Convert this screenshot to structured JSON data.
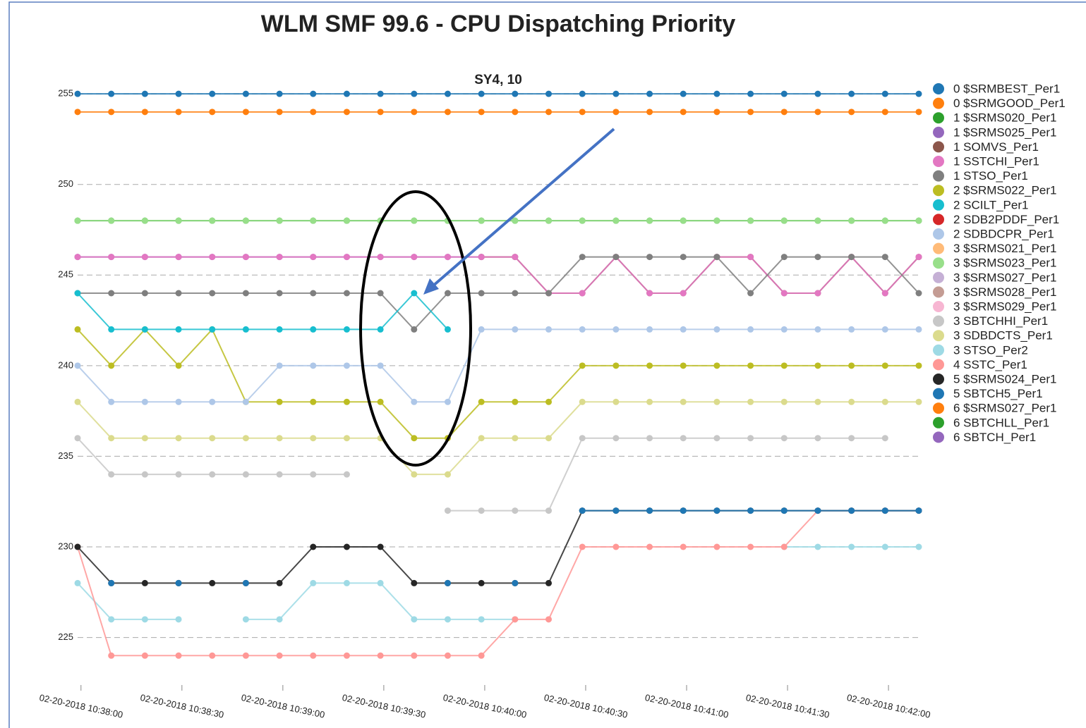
{
  "chart_data": {
    "type": "line",
    "title": "WLM SMF 99.6 - CPU Dispatching Priority",
    "subtitle": "SY4, 10",
    "x": [
      "02-20-2018 10:37:59",
      "02-20-2018 10:38:09",
      "02-20-2018 10:38:19",
      "02-20-2018 10:38:29",
      "02-20-2018 10:38:39",
      "02-20-2018 10:38:49",
      "02-20-2018 10:38:59",
      "02-20-2018 10:39:09",
      "02-20-2018 10:39:19",
      "02-20-2018 10:39:29",
      "02-20-2018 10:39:39",
      "02-20-2018 10:39:49",
      "02-20-2018 10:39:59",
      "02-20-2018 10:40:09",
      "02-20-2018 10:40:19",
      "02-20-2018 10:40:29",
      "02-20-2018 10:40:39",
      "02-20-2018 10:40:49",
      "02-20-2018 10:40:59",
      "02-20-2018 10:41:09",
      "02-20-2018 10:41:19",
      "02-20-2018 10:41:29",
      "02-20-2018 10:41:39",
      "02-20-2018 10:41:49",
      "02-20-2018 10:41:59",
      "02-20-2018 10:42:09"
    ],
    "xlim": [
      "02-20-2018 10:37:59",
      "02-20-2018 10:42:09"
    ],
    "xticks": [
      "02-20-2018 10:38:00",
      "02-20-2018 10:38:30",
      "02-20-2018 10:39:00",
      "02-20-2018 10:39:30",
      "02-20-2018 10:40:00",
      "02-20-2018 10:40:30",
      "02-20-2018 10:41:00",
      "02-20-2018 10:41:30",
      "02-20-2018 10:42:00"
    ],
    "ylim": [
      223,
      255.2
    ],
    "yticks": [
      225,
      230,
      235,
      240,
      245,
      250,
      255
    ],
    "grid": true,
    "legend": "right",
    "series": [
      {
        "name": "0 $SRMBEST_Per1",
        "color": "#1f77b4",
        "values": [
          255,
          255,
          255,
          255,
          255,
          255,
          255,
          255,
          255,
          255,
          255,
          255,
          255,
          255,
          255,
          255,
          255,
          255,
          255,
          255,
          255,
          255,
          255,
          255,
          255,
          255
        ]
      },
      {
        "name": "0 $SRMGOOD_Per1",
        "color": "#ff7f0e",
        "values": [
          254,
          254,
          254,
          254,
          254,
          254,
          254,
          254,
          254,
          254,
          254,
          254,
          254,
          254,
          254,
          254,
          254,
          254,
          254,
          254,
          254,
          254,
          254,
          254,
          254,
          254
        ]
      },
      {
        "name": "1 $SRMS020_Per1",
        "color": "#2ca02c",
        "values": [
          248,
          248,
          248,
          248,
          248,
          248,
          248,
          248,
          248,
          248,
          248,
          248,
          248,
          248,
          248,
          248,
          248,
          248,
          248,
          248,
          248,
          248,
          248,
          248,
          248,
          248
        ]
      },
      {
        "name": "1 $SRMS025_Per1",
        "color": "#9467bd",
        "values": [
          246,
          246,
          246,
          246,
          246,
          246,
          246,
          246,
          246,
          246,
          246,
          246,
          246,
          null,
          null,
          null,
          null,
          null,
          null,
          null,
          null,
          null,
          null,
          null,
          null,
          null
        ]
      },
      {
        "name": "1 SOMVS_Per1",
        "color": "#8c564b",
        "values": [
          null,
          null,
          null,
          null,
          null,
          null,
          null,
          null,
          null,
          null,
          null,
          null,
          246,
          246,
          244,
          244,
          246,
          244,
          244,
          246,
          246,
          244,
          244,
          246,
          244,
          246
        ]
      },
      {
        "name": "1 SSTCHI_Per1",
        "color": "#e377c2",
        "values": [
          246,
          246,
          246,
          246,
          246,
          246,
          246,
          246,
          246,
          246,
          246,
          246,
          246,
          246,
          244,
          244,
          246,
          244,
          244,
          246,
          246,
          244,
          244,
          246,
          244,
          246
        ]
      },
      {
        "name": "1 STSO_Per1",
        "color": "#7f7f7f",
        "values": [
          244,
          244,
          244,
          244,
          244,
          244,
          244,
          244,
          244,
          244,
          242,
          244,
          244,
          244,
          244,
          246,
          246,
          246,
          246,
          246,
          244,
          246,
          246,
          246,
          246,
          244
        ]
      },
      {
        "name": "2 $SRMS022_Per1",
        "color": "#bcbd22",
        "values": [
          242,
          240,
          242,
          240,
          242,
          238,
          238,
          238,
          238,
          238,
          236,
          236,
          238,
          238,
          238,
          240,
          240,
          240,
          240,
          240,
          240,
          240,
          240,
          240,
          240,
          240
        ]
      },
      {
        "name": "2 SCILT_Per1",
        "color": "#17becf",
        "values": [
          244,
          242,
          242,
          242,
          242,
          242,
          242,
          242,
          242,
          242,
          244,
          242,
          null,
          null,
          null,
          null,
          null,
          null,
          null,
          null,
          null,
          null,
          null,
          null,
          null,
          null
        ]
      },
      {
        "name": "2 SDB2PDDF_Per1",
        "color": "#d62728",
        "values": [
          null,
          null,
          null,
          null,
          null,
          null,
          null,
          null,
          null,
          null,
          null,
          null,
          null,
          null,
          null,
          null,
          null,
          null,
          null,
          null,
          null,
          null,
          null,
          null,
          null,
          null
        ]
      },
      {
        "name": "2 SDBDCPR_Per1",
        "color": "#aec7e8",
        "values": [
          240,
          238,
          238,
          238,
          238,
          238,
          240,
          240,
          240,
          240,
          238,
          238,
          242,
          242,
          242,
          242,
          242,
          242,
          242,
          242,
          242,
          242,
          242,
          242,
          242,
          242
        ]
      },
      {
        "name": "3 $SRMS021_Per1",
        "color": "#ffbb78",
        "values": [
          null,
          null,
          null,
          null,
          null,
          null,
          null,
          null,
          null,
          null,
          null,
          null,
          null,
          null,
          null,
          null,
          null,
          null,
          null,
          null,
          null,
          null,
          null,
          null,
          null,
          null
        ]
      },
      {
        "name": "3 $SRMS023_Per1",
        "color": "#98df8a",
        "values": [
          248,
          248,
          248,
          248,
          248,
          248,
          248,
          248,
          248,
          248,
          248,
          248,
          248,
          248,
          248,
          248,
          248,
          248,
          248,
          248,
          248,
          248,
          248,
          248,
          248,
          248
        ]
      },
      {
        "name": "3 $SRMS027_Per1",
        "color": "#c5b0d5",
        "values": [
          null,
          null,
          null,
          null,
          null,
          null,
          null,
          null,
          null,
          null,
          null,
          null,
          null,
          null,
          null,
          null,
          null,
          null,
          null,
          null,
          null,
          null,
          null,
          null,
          null,
          null
        ]
      },
      {
        "name": "3 $SRMS028_Per1",
        "color": "#c49c94",
        "values": [
          null,
          null,
          null,
          null,
          null,
          null,
          null,
          null,
          null,
          null,
          null,
          null,
          null,
          null,
          null,
          null,
          null,
          null,
          null,
          null,
          null,
          null,
          null,
          null,
          null,
          null
        ]
      },
      {
        "name": "3 $SRMS029_Per1",
        "color": "#f7b6d2",
        "values": [
          null,
          null,
          null,
          null,
          null,
          null,
          null,
          null,
          null,
          null,
          null,
          null,
          null,
          null,
          null,
          null,
          null,
          null,
          null,
          null,
          null,
          null,
          null,
          null,
          null,
          null
        ]
      },
      {
        "name": "3 SBTCHHI_Per1",
        "color": "#c7c7c7",
        "values": [
          236,
          234,
          234,
          234,
          234,
          234,
          234,
          234,
          234,
          null,
          null,
          232,
          232,
          232,
          232,
          236,
          236,
          236,
          236,
          236,
          236,
          236,
          236,
          236,
          236,
          null
        ]
      },
      {
        "name": "3 SDBDCTS_Per1",
        "color": "#dbdb8d",
        "values": [
          238,
          236,
          236,
          236,
          236,
          236,
          236,
          236,
          236,
          236,
          234,
          234,
          236,
          236,
          236,
          238,
          238,
          238,
          238,
          238,
          238,
          238,
          238,
          238,
          238,
          238
        ]
      },
      {
        "name": "3 STSO_Per2",
        "color": "#9edae5",
        "values": [
          228,
          226,
          226,
          226,
          null,
          226,
          226,
          228,
          228,
          228,
          226,
          226,
          226,
          226,
          null,
          null,
          null,
          null,
          null,
          null,
          null,
          230,
          230,
          230,
          230,
          230
        ]
      },
      {
        "name": "4 SSTC_Per1",
        "color": "#ff9896",
        "values": [
          230,
          224,
          224,
          224,
          224,
          224,
          224,
          224,
          224,
          224,
          224,
          224,
          224,
          226,
          226,
          230,
          230,
          230,
          230,
          230,
          230,
          230,
          232,
          232,
          232,
          232
        ]
      },
      {
        "name": "5 $SRMS024_Per1",
        "color": "#262626",
        "values": [
          230,
          228,
          228,
          228,
          228,
          228,
          228,
          230,
          230,
          230,
          228,
          228,
          228,
          228,
          228,
          232,
          232,
          232,
          232,
          232,
          232,
          232,
          232,
          232,
          232,
          232
        ]
      },
      {
        "name": "5 SBTCH5_Per1",
        "color": "#1f77b4",
        "values": [
          null,
          228,
          null,
          228,
          null,
          228,
          null,
          null,
          null,
          null,
          null,
          228,
          null,
          228,
          null,
          232,
          232,
          232,
          232,
          232,
          232,
          232,
          232,
          232,
          232,
          232
        ]
      },
      {
        "name": "6 $SRMS027_Per1",
        "color": "#ff7f0e",
        "values": [
          null,
          null,
          null,
          null,
          null,
          null,
          null,
          null,
          null,
          null,
          null,
          null,
          null,
          null,
          null,
          null,
          null,
          null,
          null,
          null,
          null,
          null,
          null,
          null,
          null,
          null
        ]
      },
      {
        "name": "6 SBTCHLL_Per1",
        "color": "#2ca02c",
        "values": [
          null,
          null,
          null,
          null,
          null,
          null,
          null,
          null,
          null,
          null,
          null,
          null,
          null,
          null,
          null,
          null,
          null,
          null,
          null,
          null,
          null,
          null,
          null,
          null,
          null,
          null
        ]
      },
      {
        "name": "6 SBTCH_Per1",
        "color": "#9467bd",
        "values": [
          null,
          null,
          null,
          null,
          null,
          null,
          null,
          null,
          null,
          null,
          null,
          null,
          null,
          null,
          null,
          null,
          null,
          null,
          null,
          null,
          null,
          null,
          null,
          null,
          null,
          null
        ]
      }
    ]
  }
}
